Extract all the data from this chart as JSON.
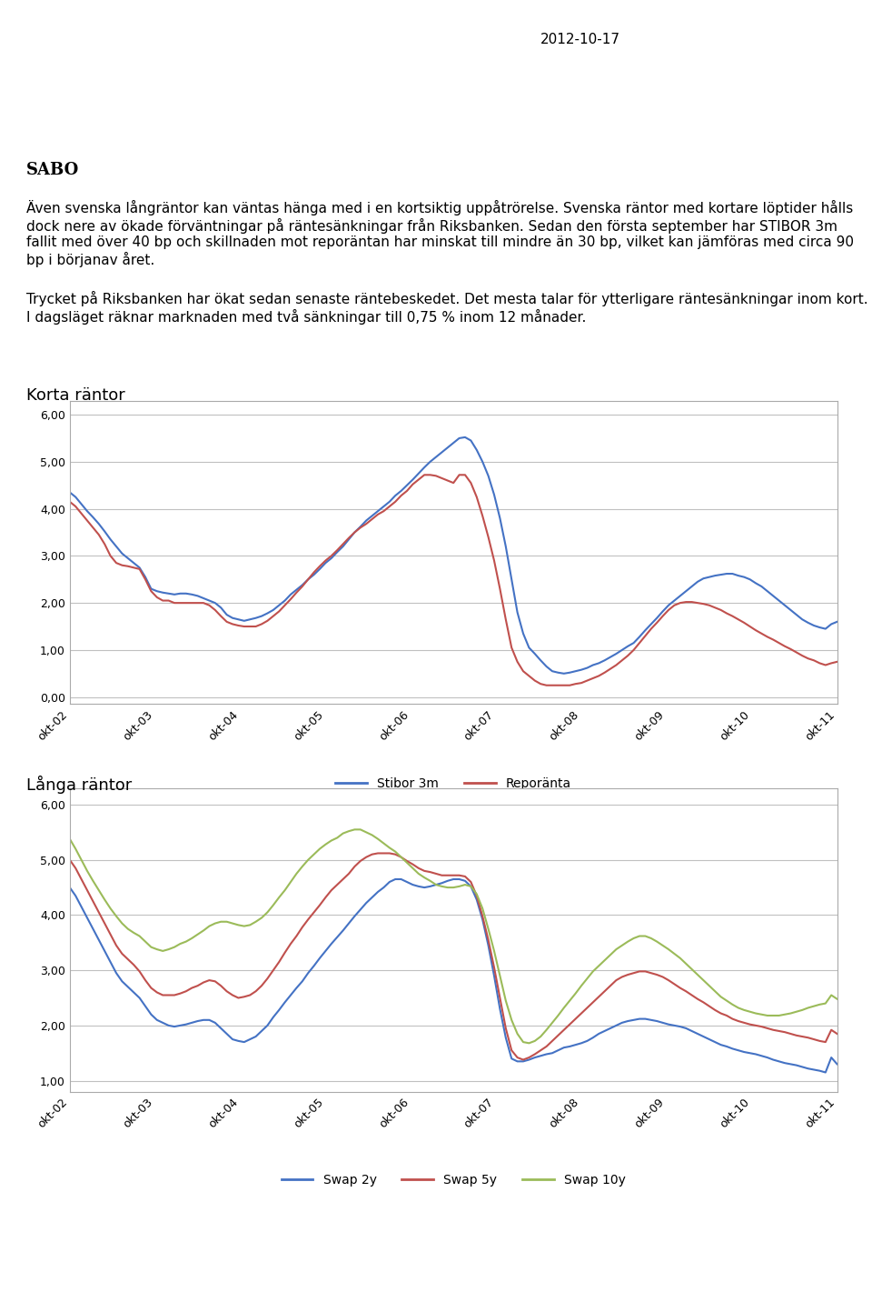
{
  "date": "2012-10-17",
  "sabo_color": "#2a8a8a",
  "title_text": "2012-10-17",
  "paragraph1": "Även svenska långräntor kan väntas hänga med i en kortsiktig uppåtrörelse. Svenska räntor med\nkortare löptider hålls dock nere av ökade förväntningar på räntesänkningar från Riksbanken.\nSedan den första september har STIBOR 3m fallit med över 40 bp och skillnaden mot\nreporäntan har minskat till mindre än 30 bp, vilket kan jämföras med cirka 90 bp i börjanav året.",
  "paragraph2": "Trycket på Riksbanken har ökat sedan senaste räntebeskedet. Det mesta talar för ytterligare\nräntesänkningar inom kort. I dagsläget räknar marknaden med två sänkningar till 0,75 % inom\n12 månader.",
  "chart1_title": "Korta räntor",
  "chart1_yticks": [
    0.0,
    1.0,
    2.0,
    3.0,
    4.0,
    5.0,
    6.0
  ],
  "chart1_ylim": [
    -0.15,
    6.3
  ],
  "chart1_xtick_labels": [
    "okt-02",
    "okt-03",
    "okt-04",
    "okt-05",
    "okt-06",
    "okt-07",
    "okt-08",
    "okt-09",
    "okt-10",
    "okt-11"
  ],
  "chart1_stibor": [
    4.35,
    4.25,
    4.1,
    3.95,
    3.82,
    3.68,
    3.52,
    3.35,
    3.2,
    3.05,
    2.95,
    2.85,
    2.75,
    2.55,
    2.3,
    2.25,
    2.22,
    2.2,
    2.18,
    2.2,
    2.2,
    2.18,
    2.15,
    2.1,
    2.05,
    2.0,
    1.9,
    1.75,
    1.68,
    1.65,
    1.62,
    1.65,
    1.68,
    1.72,
    1.78,
    1.85,
    1.95,
    2.05,
    2.18,
    2.28,
    2.38,
    2.5,
    2.6,
    2.72,
    2.85,
    2.95,
    3.08,
    3.2,
    3.35,
    3.5,
    3.62,
    3.75,
    3.85,
    3.95,
    4.05,
    4.15,
    4.28,
    4.38,
    4.5,
    4.62,
    4.75,
    4.88,
    5.0,
    5.1,
    5.2,
    5.3,
    5.4,
    5.5,
    5.52,
    5.45,
    5.25,
    5.0,
    4.7,
    4.3,
    3.8,
    3.2,
    2.5,
    1.8,
    1.35,
    1.05,
    0.92,
    0.78,
    0.65,
    0.55,
    0.52,
    0.5,
    0.52,
    0.55,
    0.58,
    0.62,
    0.68,
    0.72,
    0.78,
    0.85,
    0.92,
    1.0,
    1.08,
    1.15,
    1.28,
    1.42,
    1.55,
    1.68,
    1.82,
    1.95,
    2.05,
    2.15,
    2.25,
    2.35,
    2.45,
    2.52,
    2.55,
    2.58,
    2.6,
    2.62,
    2.62,
    2.58,
    2.55,
    2.5,
    2.42,
    2.35,
    2.25,
    2.15,
    2.05,
    1.95,
    1.85,
    1.75,
    1.65,
    1.58,
    1.52,
    1.48,
    1.45,
    1.55,
    1.6
  ],
  "chart1_repo": [
    4.15,
    4.05,
    3.9,
    3.75,
    3.6,
    3.45,
    3.25,
    3.0,
    2.85,
    2.8,
    2.78,
    2.75,
    2.72,
    2.5,
    2.25,
    2.12,
    2.05,
    2.05,
    2.0,
    2.0,
    2.0,
    2.0,
    2.0,
    2.0,
    1.95,
    1.85,
    1.72,
    1.6,
    1.55,
    1.52,
    1.5,
    1.5,
    1.5,
    1.55,
    1.62,
    1.72,
    1.82,
    1.95,
    2.08,
    2.22,
    2.35,
    2.5,
    2.65,
    2.78,
    2.9,
    3.0,
    3.12,
    3.25,
    3.38,
    3.5,
    3.6,
    3.68,
    3.78,
    3.88,
    3.95,
    4.05,
    4.15,
    4.28,
    4.38,
    4.52,
    4.62,
    4.72,
    4.72,
    4.7,
    4.65,
    4.6,
    4.55,
    4.72,
    4.72,
    4.55,
    4.25,
    3.85,
    3.4,
    2.9,
    2.3,
    1.65,
    1.05,
    0.75,
    0.55,
    0.45,
    0.35,
    0.28,
    0.25,
    0.25,
    0.25,
    0.25,
    0.25,
    0.28,
    0.3,
    0.35,
    0.4,
    0.45,
    0.52,
    0.6,
    0.68,
    0.78,
    0.88,
    1.0,
    1.15,
    1.3,
    1.45,
    1.58,
    1.72,
    1.85,
    1.95,
    2.0,
    2.02,
    2.02,
    2.0,
    1.98,
    1.95,
    1.9,
    1.85,
    1.78,
    1.72,
    1.65,
    1.58,
    1.5,
    1.42,
    1.35,
    1.28,
    1.22,
    1.15,
    1.08,
    1.02,
    0.95,
    0.88,
    0.82,
    0.78,
    0.72,
    0.68,
    0.72,
    0.75
  ],
  "chart1_stibor_color": "#4472c4",
  "chart1_repo_color": "#c0504d",
  "chart1_stibor_label": "Stibor 3m",
  "chart1_repo_label": "Reporänta",
  "chart2_title": "Långa räntor",
  "chart2_yticks": [
    1.0,
    2.0,
    3.0,
    4.0,
    5.0,
    6.0
  ],
  "chart2_ylim": [
    0.8,
    6.3
  ],
  "chart2_xtick_labels": [
    "okt-02",
    "okt-03",
    "okt-04",
    "okt-05",
    "okt-06",
    "okt-07",
    "okt-08",
    "okt-09",
    "okt-10",
    "okt-11"
  ],
  "chart2_swap2y": [
    4.5,
    4.35,
    4.15,
    3.95,
    3.75,
    3.55,
    3.35,
    3.15,
    2.95,
    2.8,
    2.7,
    2.6,
    2.5,
    2.35,
    2.2,
    2.1,
    2.05,
    2.0,
    1.98,
    2.0,
    2.02,
    2.05,
    2.08,
    2.1,
    2.1,
    2.05,
    1.95,
    1.85,
    1.75,
    1.72,
    1.7,
    1.75,
    1.8,
    1.9,
    2.0,
    2.15,
    2.28,
    2.42,
    2.55,
    2.68,
    2.8,
    2.95,
    3.08,
    3.22,
    3.35,
    3.48,
    3.6,
    3.72,
    3.85,
    3.98,
    4.1,
    4.22,
    4.32,
    4.42,
    4.5,
    4.6,
    4.65,
    4.65,
    4.6,
    4.55,
    4.52,
    4.5,
    4.52,
    4.55,
    4.58,
    4.62,
    4.65,
    4.65,
    4.62,
    4.52,
    4.28,
    3.92,
    3.45,
    2.9,
    2.3,
    1.78,
    1.4,
    1.35,
    1.35,
    1.38,
    1.42,
    1.45,
    1.48,
    1.5,
    1.55,
    1.6,
    1.62,
    1.65,
    1.68,
    1.72,
    1.78,
    1.85,
    1.9,
    1.95,
    2.0,
    2.05,
    2.08,
    2.1,
    2.12,
    2.12,
    2.1,
    2.08,
    2.05,
    2.02,
    2.0,
    1.98,
    1.95,
    1.9,
    1.85,
    1.8,
    1.75,
    1.7,
    1.65,
    1.62,
    1.58,
    1.55,
    1.52,
    1.5,
    1.48,
    1.45,
    1.42,
    1.38,
    1.35,
    1.32,
    1.3,
    1.28,
    1.25,
    1.22,
    1.2,
    1.18,
    1.15,
    1.42,
    1.3
  ],
  "chart2_swap5y": [
    5.0,
    4.85,
    4.65,
    4.45,
    4.25,
    4.05,
    3.85,
    3.65,
    3.45,
    3.3,
    3.2,
    3.1,
    2.98,
    2.82,
    2.68,
    2.6,
    2.55,
    2.55,
    2.55,
    2.58,
    2.62,
    2.68,
    2.72,
    2.78,
    2.82,
    2.8,
    2.72,
    2.62,
    2.55,
    2.5,
    2.52,
    2.55,
    2.62,
    2.72,
    2.85,
    3.0,
    3.15,
    3.32,
    3.48,
    3.62,
    3.78,
    3.92,
    4.05,
    4.18,
    4.32,
    4.45,
    4.55,
    4.65,
    4.75,
    4.88,
    4.98,
    5.05,
    5.1,
    5.12,
    5.12,
    5.12,
    5.1,
    5.05,
    4.98,
    4.92,
    4.85,
    4.8,
    4.78,
    4.75,
    4.72,
    4.72,
    4.72,
    4.72,
    4.7,
    4.6,
    4.35,
    3.98,
    3.55,
    3.05,
    2.5,
    1.95,
    1.55,
    1.42,
    1.38,
    1.42,
    1.48,
    1.55,
    1.62,
    1.72,
    1.82,
    1.92,
    2.02,
    2.12,
    2.22,
    2.32,
    2.42,
    2.52,
    2.62,
    2.72,
    2.82,
    2.88,
    2.92,
    2.95,
    2.98,
    2.98,
    2.95,
    2.92,
    2.88,
    2.82,
    2.75,
    2.68,
    2.62,
    2.55,
    2.48,
    2.42,
    2.35,
    2.28,
    2.22,
    2.18,
    2.12,
    2.08,
    2.05,
    2.02,
    2.0,
    1.98,
    1.95,
    1.92,
    1.9,
    1.88,
    1.85,
    1.82,
    1.8,
    1.78,
    1.75,
    1.72,
    1.7,
    1.92,
    1.85
  ],
  "chart2_swap10y": [
    5.38,
    5.2,
    5.0,
    4.8,
    4.62,
    4.45,
    4.28,
    4.12,
    3.98,
    3.85,
    3.75,
    3.68,
    3.62,
    3.52,
    3.42,
    3.38,
    3.35,
    3.38,
    3.42,
    3.48,
    3.52,
    3.58,
    3.65,
    3.72,
    3.8,
    3.85,
    3.88,
    3.88,
    3.85,
    3.82,
    3.8,
    3.82,
    3.88,
    3.95,
    4.05,
    4.18,
    4.32,
    4.45,
    4.6,
    4.75,
    4.88,
    5.0,
    5.1,
    5.2,
    5.28,
    5.35,
    5.4,
    5.48,
    5.52,
    5.55,
    5.55,
    5.5,
    5.45,
    5.38,
    5.3,
    5.22,
    5.15,
    5.05,
    4.95,
    4.85,
    4.75,
    4.68,
    4.62,
    4.55,
    4.52,
    4.5,
    4.5,
    4.52,
    4.55,
    4.52,
    4.38,
    4.12,
    3.75,
    3.35,
    2.9,
    2.45,
    2.1,
    1.85,
    1.7,
    1.68,
    1.72,
    1.8,
    1.92,
    2.05,
    2.18,
    2.32,
    2.45,
    2.58,
    2.72,
    2.85,
    2.98,
    3.08,
    3.18,
    3.28,
    3.38,
    3.45,
    3.52,
    3.58,
    3.62,
    3.62,
    3.58,
    3.52,
    3.45,
    3.38,
    3.3,
    3.22,
    3.12,
    3.02,
    2.92,
    2.82,
    2.72,
    2.62,
    2.52,
    2.45,
    2.38,
    2.32,
    2.28,
    2.25,
    2.22,
    2.2,
    2.18,
    2.18,
    2.18,
    2.2,
    2.22,
    2.25,
    2.28,
    2.32,
    2.35,
    2.38,
    2.4,
    2.55,
    2.48
  ],
  "chart2_swap2y_color": "#4472c4",
  "chart2_swap5y_color": "#c0504d",
  "chart2_swap10y_color": "#9bbb59",
  "chart2_swap2y_label": "Swap 2y",
  "chart2_swap5y_label": "Swap 5y",
  "chart2_swap10y_label": "Swap 10y",
  "background_color": "#ffffff",
  "chart_bg_color": "#ffffff",
  "grid_color": "#c0c0c0",
  "tick_label_fontsize": 9,
  "axis_label_fontsize": 10,
  "legend_fontsize": 10,
  "chart_title_fontsize": 13
}
